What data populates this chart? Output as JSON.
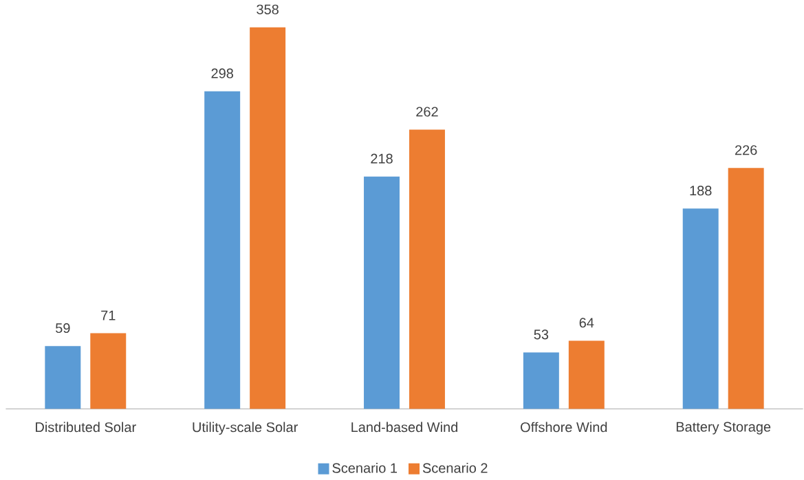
{
  "chart_data": {
    "type": "bar",
    "categories": [
      "Distributed Solar",
      "Utility-scale Solar",
      "Land-based Wind",
      "Offshore Wind",
      "Battery Storage"
    ],
    "series": [
      {
        "name": "Scenario 1",
        "color": "#5b9bd5",
        "values": [
          59,
          298,
          218,
          53,
          188
        ]
      },
      {
        "name": "Scenario 2",
        "color": "#ed7d31",
        "values": [
          71,
          358,
          262,
          64,
          226
        ]
      }
    ],
    "data_labels": true,
    "legend": "bottom"
  }
}
